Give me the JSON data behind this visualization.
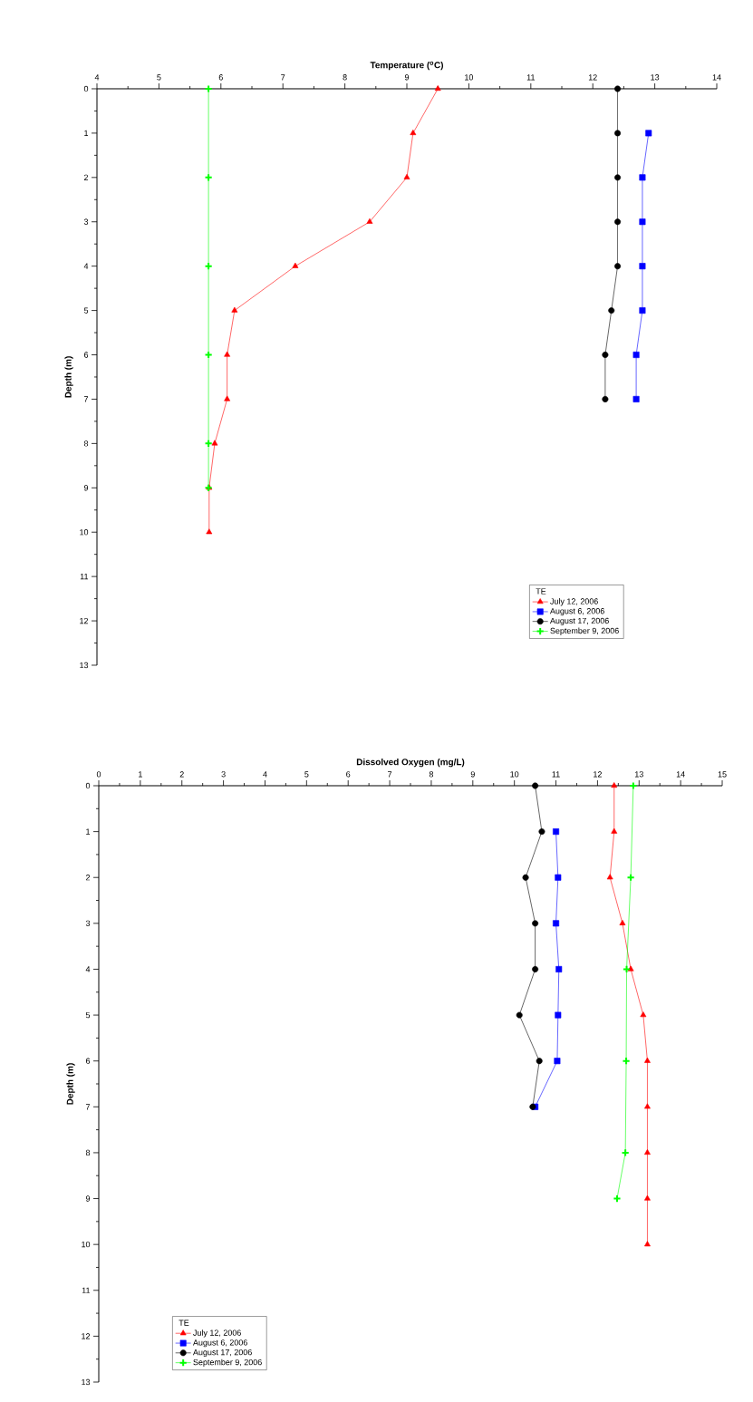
{
  "chart_data": [
    {
      "type": "line",
      "xlabel": "Temperature ($^{o}$C)",
      "ylabel": "Depth (m)",
      "legend_title": "TE",
      "legend": "bottom right",
      "xlim": [
        4,
        14
      ],
      "xticks": [
        4,
        5,
        6,
        7,
        8,
        9,
        10,
        11,
        12,
        13,
        14
      ],
      "ylim": [
        13,
        0
      ],
      "yticks": [
        0,
        1,
        2,
        3,
        4,
        5,
        6,
        7,
        8,
        9,
        10,
        11,
        12,
        13
      ],
      "series": [
        {
          "name": "July 12, 2006",
          "color": "#ff0000",
          "marker": "triangle",
          "x": [
            9.5,
            9.1,
            9.0,
            8.4,
            7.2,
            6.22,
            6.1,
            6.1,
            5.9,
            5.81,
            5.81
          ],
          "values": [
            0,
            1,
            2,
            3,
            4,
            5,
            6,
            7,
            8,
            9,
            10
          ]
        },
        {
          "name": "August 6, 2006",
          "color": "#0000ff",
          "marker": "square",
          "x": [
            12.9,
            12.8,
            12.8,
            12.8,
            12.8,
            12.7,
            12.7
          ],
          "values": [
            1,
            2,
            3,
            4,
            5,
            6,
            7
          ]
        },
        {
          "name": "August 17, 2006",
          "color": "#000000",
          "marker": "circle",
          "x": [
            12.4,
            12.4,
            12.4,
            12.4,
            12.4,
            12.3,
            12.2,
            12.2
          ],
          "values": [
            0,
            1,
            2,
            3,
            4,
            5,
            6,
            7
          ]
        },
        {
          "name": "September 9, 2006",
          "color": "#00ff00",
          "marker": "cross",
          "x": [
            5.8,
            5.8,
            5.8,
            5.8,
            5.8,
            5.8
          ],
          "values": [
            0,
            2,
            4,
            6,
            8,
            9
          ]
        }
      ]
    },
    {
      "type": "line",
      "xlabel": "Dissolved Oxygen (mg/L)",
      "ylabel": "Depth (m)",
      "legend_title": "TE",
      "legend": "bottom left",
      "xlim": [
        0,
        15
      ],
      "xticks": [
        0,
        1,
        2,
        3,
        4,
        5,
        6,
        7,
        8,
        9,
        10,
        11,
        12,
        13,
        14,
        15
      ],
      "ylim": [
        13,
        0
      ],
      "yticks": [
        0,
        1,
        2,
        3,
        4,
        5,
        6,
        7,
        8,
        9,
        10,
        11,
        12,
        13
      ],
      "series": [
        {
          "name": "July 12, 2006",
          "color": "#ff0000",
          "marker": "triangle",
          "x": [
            12.4,
            12.4,
            12.3,
            12.6,
            12.8,
            13.1,
            13.2,
            13.2,
            13.2,
            13.2,
            13.2
          ],
          "values": [
            0,
            1,
            2,
            3,
            4,
            5,
            6,
            7,
            8,
            9,
            10
          ]
        },
        {
          "name": "August 6, 2006",
          "color": "#0000ff",
          "marker": "square",
          "x": [
            11.0,
            11.05,
            11.0,
            11.07,
            11.05,
            11.03,
            10.5
          ],
          "values": [
            1,
            2,
            3,
            4,
            5,
            6,
            7
          ]
        },
        {
          "name": "August 17, 2006",
          "color": "#000000",
          "marker": "circle",
          "x": [
            10.5,
            10.66,
            10.27,
            10.5,
            10.5,
            10.12,
            10.6,
            10.44
          ],
          "values": [
            0,
            1,
            2,
            3,
            4,
            5,
            6,
            7
          ]
        },
        {
          "name": "September 9, 2006",
          "color": "#00ff00",
          "marker": "cross",
          "x": [
            12.86,
            12.8,
            12.7,
            12.69,
            12.67,
            12.47
          ],
          "values": [
            0,
            2,
            4,
            6,
            8,
            9
          ]
        }
      ]
    }
  ]
}
